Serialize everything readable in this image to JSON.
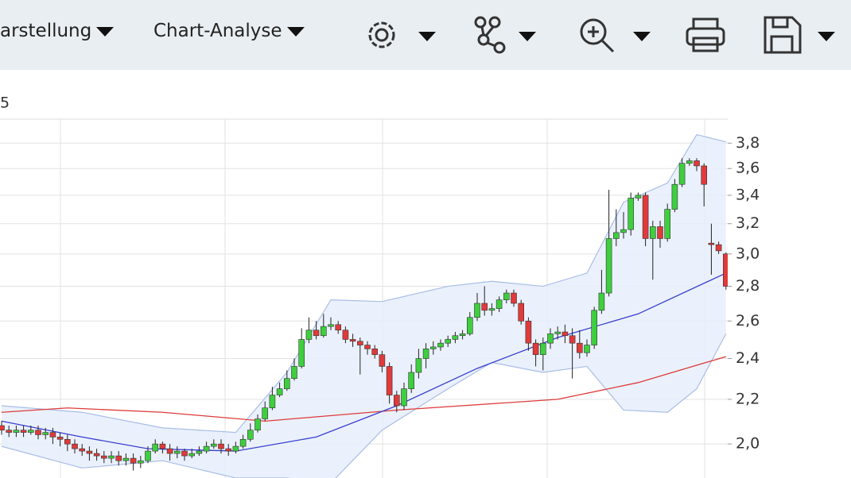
{
  "toolbar": {
    "items": [
      "arstellung",
      "Chart-Analyse"
    ]
  },
  "chart_data": {
    "type": "candlestick",
    "subtitle": "5",
    "log_scale": true,
    "grid": true,
    "ylim": [
      1.86,
      4.0
    ],
    "yticks": [
      {
        "value": 2.0,
        "label": "2,0"
      },
      {
        "value": 2.2,
        "label": "2,2"
      },
      {
        "value": 2.4,
        "label": "2,4"
      },
      {
        "value": 2.6,
        "label": "2,6"
      },
      {
        "value": 2.8,
        "label": "2,8"
      },
      {
        "value": 3.0,
        "label": "3,0"
      },
      {
        "value": 3.2,
        "label": "3,2"
      },
      {
        "value": 3.4,
        "label": "3,4"
      },
      {
        "value": 3.6,
        "label": "3,6"
      },
      {
        "value": 3.8,
        "label": "3,8"
      }
    ],
    "up_color": "#3ecf3e",
    "down_color": "#e03a3a",
    "open": [
      2.08,
      2.06,
      2.05,
      2.06,
      2.05,
      2.06,
      2.04,
      2.05,
      2.03,
      2.02,
      2.0,
      1.98,
      1.97,
      1.96,
      1.95,
      1.94,
      1.95,
      1.93,
      1.94,
      1.92,
      1.93,
      1.97,
      2.0,
      1.98,
      1.96,
      1.97,
      1.95,
      1.96,
      1.97,
      1.99,
      2.0,
      1.98,
      1.97,
      1.99,
      2.02,
      2.06,
      2.11,
      2.16,
      2.22,
      2.25,
      2.3,
      2.36,
      2.5,
      2.55,
      2.52,
      2.57,
      2.58,
      2.55,
      2.5,
      2.49,
      2.47,
      2.45,
      2.42,
      2.36,
      2.22,
      2.17,
      2.25,
      2.33,
      2.4,
      2.45,
      2.46,
      2.48,
      2.5,
      2.52,
      2.53,
      2.62,
      2.7,
      2.66,
      2.67,
      2.72,
      2.76,
      2.7,
      2.6,
      2.48,
      2.42,
      2.48,
      2.53,
      2.54,
      2.52,
      2.48,
      2.43,
      2.47,
      2.66,
      2.76,
      3.1,
      3.14,
      3.16,
      3.38,
      3.4,
      3.1,
      3.18,
      3.1,
      3.3,
      3.48,
      3.64,
      3.66,
      3.62,
      3.07,
      3.06,
      3.0
    ],
    "high": [
      2.1,
      2.08,
      2.08,
      2.08,
      2.08,
      2.08,
      2.07,
      2.07,
      2.05,
      2.04,
      2.02,
      2.0,
      1.99,
      1.98,
      1.97,
      1.97,
      1.97,
      1.96,
      1.96,
      1.95,
      1.99,
      2.02,
      2.01,
      2.0,
      1.99,
      1.98,
      1.98,
      1.99,
      2.01,
      2.02,
      2.02,
      2.0,
      2.01,
      2.04,
      2.09,
      2.13,
      2.19,
      2.26,
      2.28,
      2.34,
      2.4,
      2.56,
      2.62,
      2.6,
      2.64,
      2.62,
      2.6,
      2.57,
      2.53,
      2.51,
      2.49,
      2.47,
      2.44,
      2.38,
      2.24,
      2.28,
      2.37,
      2.45,
      2.48,
      2.49,
      2.5,
      2.52,
      2.54,
      2.55,
      2.65,
      2.76,
      2.8,
      2.7,
      2.74,
      2.78,
      2.78,
      2.72,
      2.62,
      2.5,
      2.51,
      2.56,
      2.57,
      2.58,
      2.56,
      2.55,
      2.5,
      2.68,
      2.9,
      3.44,
      3.3,
      3.28,
      3.42,
      3.42,
      3.42,
      3.22,
      3.22,
      3.34,
      3.52,
      3.68,
      3.68,
      3.68,
      3.64,
      3.2,
      3.08,
      3.01
    ],
    "low": [
      2.04,
      2.03,
      2.03,
      2.03,
      2.04,
      2.02,
      2.02,
      2.0,
      1.99,
      1.97,
      1.96,
      1.95,
      1.93,
      1.93,
      1.92,
      1.92,
      1.91,
      1.91,
      1.89,
      1.9,
      1.92,
      1.96,
      1.96,
      1.93,
      1.94,
      1.93,
      1.94,
      1.95,
      1.96,
      1.98,
      1.96,
      1.95,
      1.96,
      1.98,
      2.01,
      2.05,
      2.1,
      2.15,
      2.21,
      2.24,
      2.29,
      2.35,
      2.48,
      2.5,
      2.51,
      2.55,
      2.53,
      2.48,
      2.46,
      2.32,
      2.42,
      2.4,
      2.33,
      2.18,
      2.14,
      2.15,
      2.23,
      2.3,
      2.35,
      2.42,
      2.44,
      2.46,
      2.48,
      2.5,
      2.52,
      2.6,
      2.63,
      2.63,
      2.65,
      2.7,
      2.68,
      2.58,
      2.44,
      2.36,
      2.34,
      2.45,
      2.5,
      2.48,
      2.3,
      2.4,
      2.41,
      2.45,
      2.64,
      2.74,
      3.05,
      3.1,
      3.12,
      3.36,
      3.05,
      2.84,
      3.04,
      3.08,
      3.28,
      3.46,
      3.62,
      3.58,
      3.32,
      2.87,
      3.0,
      2.78
    ],
    "close": [
      2.06,
      2.05,
      2.06,
      2.05,
      2.06,
      2.04,
      2.05,
      2.03,
      2.02,
      2.0,
      1.98,
      1.97,
      1.96,
      1.95,
      1.94,
      1.95,
      1.93,
      1.94,
      1.92,
      1.93,
      1.97,
      2.0,
      1.98,
      1.96,
      1.97,
      1.95,
      1.96,
      1.97,
      1.99,
      2.0,
      1.98,
      1.97,
      1.99,
      2.02,
      2.06,
      2.11,
      2.16,
      2.22,
      2.25,
      2.3,
      2.36,
      2.5,
      2.55,
      2.52,
      2.57,
      2.58,
      2.55,
      2.5,
      2.49,
      2.47,
      2.45,
      2.42,
      2.36,
      2.22,
      2.17,
      2.25,
      2.33,
      2.4,
      2.45,
      2.46,
      2.48,
      2.5,
      2.52,
      2.53,
      2.62,
      2.7,
      2.66,
      2.67,
      2.72,
      2.76,
      2.7,
      2.6,
      2.48,
      2.42,
      2.48,
      2.53,
      2.54,
      2.52,
      2.48,
      2.43,
      2.47,
      2.66,
      2.76,
      3.1,
      3.14,
      3.16,
      3.38,
      3.4,
      3.1,
      3.18,
      3.1,
      3.3,
      3.48,
      3.64,
      3.66,
      3.62,
      3.48,
      3.06,
      3.02,
      2.8
    ],
    "band": {
      "color": "#a9bde6",
      "fill": "#e6eefb",
      "x": [
        0,
        11,
        22,
        32,
        39,
        45,
        52,
        61,
        67,
        74,
        80,
        85,
        91,
        95,
        99
      ],
      "upper": [
        2.17,
        2.14,
        2.07,
        2.05,
        2.33,
        2.72,
        2.71,
        2.8,
        2.83,
        2.8,
        2.88,
        3.35,
        3.49,
        3.87,
        3.81
      ],
      "lower": [
        1.99,
        1.9,
        1.93,
        1.86,
        1.86,
        1.84,
        2.06,
        2.25,
        2.38,
        2.33,
        2.36,
        2.15,
        2.14,
        2.25,
        2.53
      ]
    },
    "series": [
      {
        "color": "#e03a3a",
        "x": [
          0,
          9,
          22,
          36,
          54,
          76,
          87,
          99
        ],
        "values": [
          2.14,
          2.16,
          2.14,
          2.1,
          2.15,
          2.2,
          2.28,
          2.41
        ]
      },
      {
        "color": "#3a3fcf",
        "x": [
          0,
          11,
          20,
          32,
          43,
          54,
          65,
          76,
          87,
          99
        ],
        "values": [
          2.1,
          2.03,
          1.98,
          1.97,
          2.03,
          2.17,
          2.35,
          2.51,
          2.64,
          2.88
        ]
      }
    ]
  }
}
